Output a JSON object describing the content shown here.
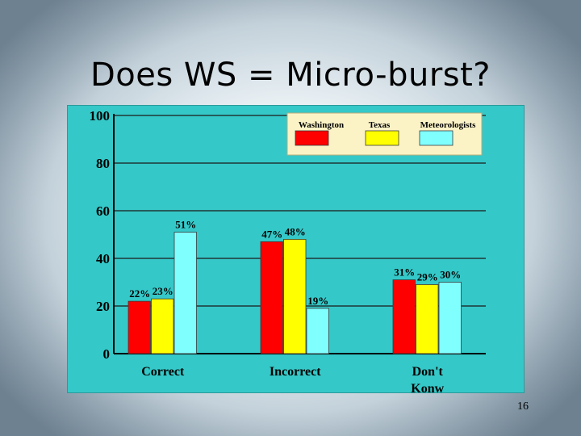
{
  "slide": {
    "title": "Does WS = Micro-burst?",
    "page_number": "16"
  },
  "colors": {
    "plot_background": "#35c8c8",
    "legend_background": "#fbf3c6",
    "Washington": "#ff0000",
    "Texas": "#ffff00",
    "Meteorologists": "#80ffff"
  },
  "chart_data": {
    "type": "bar",
    "title": "",
    "xlabel": "",
    "ylabel": "",
    "ylim": [
      0,
      100
    ],
    "yticks": [
      0,
      20,
      40,
      60,
      80,
      100
    ],
    "grid": true,
    "legend_position": "top-right",
    "categories": [
      "Correct",
      "Incorrect",
      "Don't Konw"
    ],
    "series": [
      {
        "name": "Washington",
        "values": [
          22,
          47,
          31
        ],
        "labels": [
          "22%",
          "47%",
          "31%"
        ]
      },
      {
        "name": "Texas",
        "values": [
          23,
          48,
          29
        ],
        "labels": [
          "23%",
          "48%",
          "29%"
        ]
      },
      {
        "name": "Meteorologists",
        "values": [
          51,
          19,
          30
        ],
        "labels": [
          "51%",
          "19%",
          "30%"
        ]
      }
    ]
  }
}
